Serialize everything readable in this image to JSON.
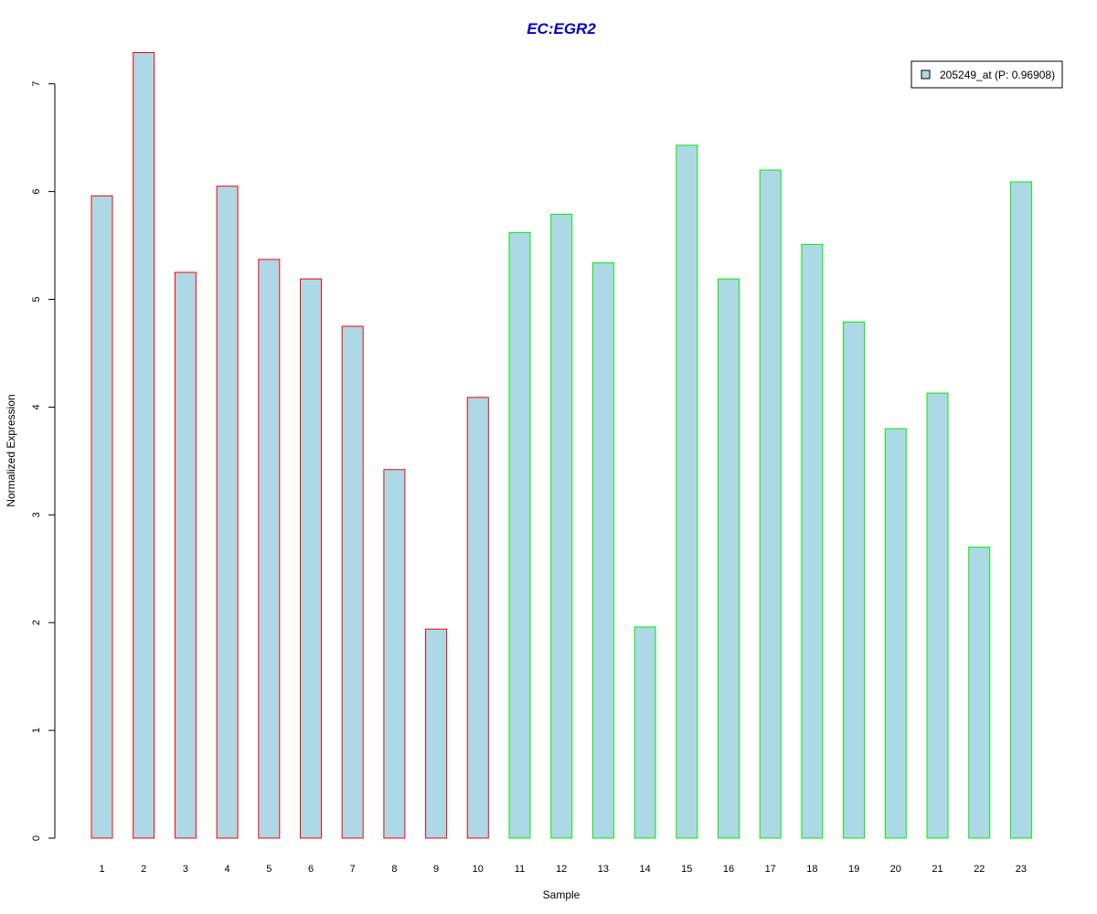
{
  "chart_data": {
    "type": "bar",
    "title": "EC:EGR2",
    "xlabel": "Sample",
    "ylabel": "Normalized Expression",
    "categories": [
      "1",
      "2",
      "3",
      "4",
      "5",
      "6",
      "7",
      "8",
      "9",
      "10",
      "11",
      "12",
      "13",
      "14",
      "15",
      "16",
      "17",
      "18",
      "19",
      "20",
      "21",
      "22",
      "23"
    ],
    "values": [
      5.96,
      7.29,
      5.25,
      6.05,
      5.37,
      5.19,
      4.75,
      3.42,
      1.94,
      4.09,
      5.62,
      5.79,
      5.34,
      1.96,
      6.43,
      5.19,
      6.2,
      5.51,
      4.79,
      3.8,
      4.13,
      2.7,
      6.09
    ],
    "groups": [
      1,
      1,
      1,
      1,
      1,
      1,
      1,
      1,
      1,
      1,
      2,
      2,
      2,
      2,
      2,
      2,
      2,
      2,
      2,
      2,
      2,
      2,
      2
    ],
    "group_colors": {
      "1": "#ff0000",
      "2": "#00ee00"
    },
    "bar_fill": "#add8e6",
    "title_color": "#0000cd",
    "ylim": [
      0,
      7
    ],
    "yticks": [
      "0",
      "1",
      "2",
      "3",
      "4",
      "5",
      "6",
      "7"
    ],
    "legend": {
      "position": "top-right",
      "entries": [
        {
          "label": "205249_at (P: 0.96908)",
          "fill": "#add8e6"
        }
      ]
    },
    "grid": false
  }
}
